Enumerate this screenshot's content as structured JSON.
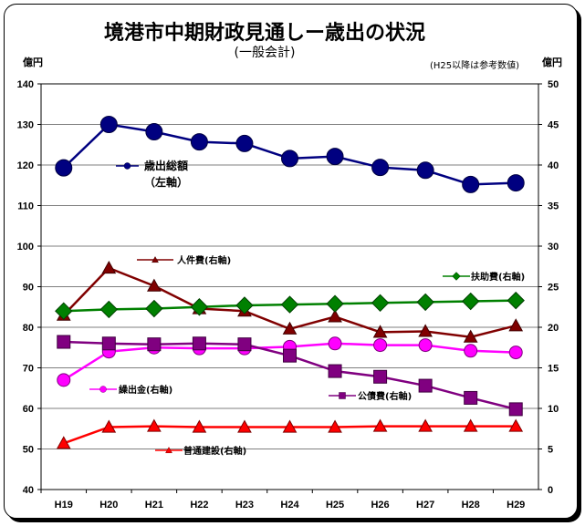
{
  "chart_data": {
    "type": "line",
    "title": "境港市中期財政見通しー歳出の状況",
    "subtitle": "(一般会計)",
    "note": "(H25以降は参考数値)",
    "left_axis": {
      "unit": "億円",
      "min": 40,
      "max": 140,
      "step": 10
    },
    "right_axis": {
      "unit": "億円",
      "min": 0,
      "max": 50,
      "step": 5
    },
    "grid": true,
    "categories": [
      "H19",
      "H20",
      "H21",
      "H22",
      "H23",
      "H24",
      "H25",
      "H26",
      "H27",
      "H28",
      "H29"
    ],
    "series": [
      {
        "name": "歳出総額",
        "name_line2": "（左軸）",
        "axis": "left",
        "color": "#000080",
        "marker": "circle",
        "values": [
          119.3,
          130.0,
          128.2,
          125.7,
          125.3,
          121.6,
          122.1,
          119.4,
          118.7,
          115.2,
          115.6
        ]
      },
      {
        "name": "人件費(右軸)",
        "axis": "right",
        "color": "#800000",
        "marker": "triangle",
        "values": [
          21.5,
          27.3,
          25.1,
          22.3,
          22.0,
          19.8,
          21.3,
          19.4,
          19.5,
          18.8,
          20.2
        ]
      },
      {
        "name": "扶助費(右軸)",
        "axis": "right",
        "color": "#008000",
        "marker": "diamond",
        "values": [
          22.0,
          22.2,
          22.3,
          22.5,
          22.7,
          22.8,
          22.9,
          23.0,
          23.1,
          23.2,
          23.3
        ]
      },
      {
        "name": "繰出金(右軸)",
        "axis": "right",
        "color": "#ff00ff",
        "marker": "circle",
        "values": [
          13.5,
          17.0,
          17.5,
          17.4,
          17.4,
          17.6,
          18.0,
          17.8,
          17.8,
          17.1,
          16.9
        ]
      },
      {
        "name": "公債費(右軸)",
        "axis": "right",
        "color": "#800080",
        "marker": "square",
        "values": [
          18.2,
          18.0,
          17.9,
          18.0,
          17.9,
          16.5,
          14.6,
          13.9,
          12.8,
          11.3,
          9.9
        ]
      },
      {
        "name": "普通建設(右軸)",
        "axis": "right",
        "color": "#ff0000",
        "marker": "triangle",
        "values": [
          5.7,
          7.7,
          7.8,
          7.7,
          7.7,
          7.7,
          7.7,
          7.8,
          7.8,
          7.8,
          7.8
        ]
      }
    ]
  }
}
